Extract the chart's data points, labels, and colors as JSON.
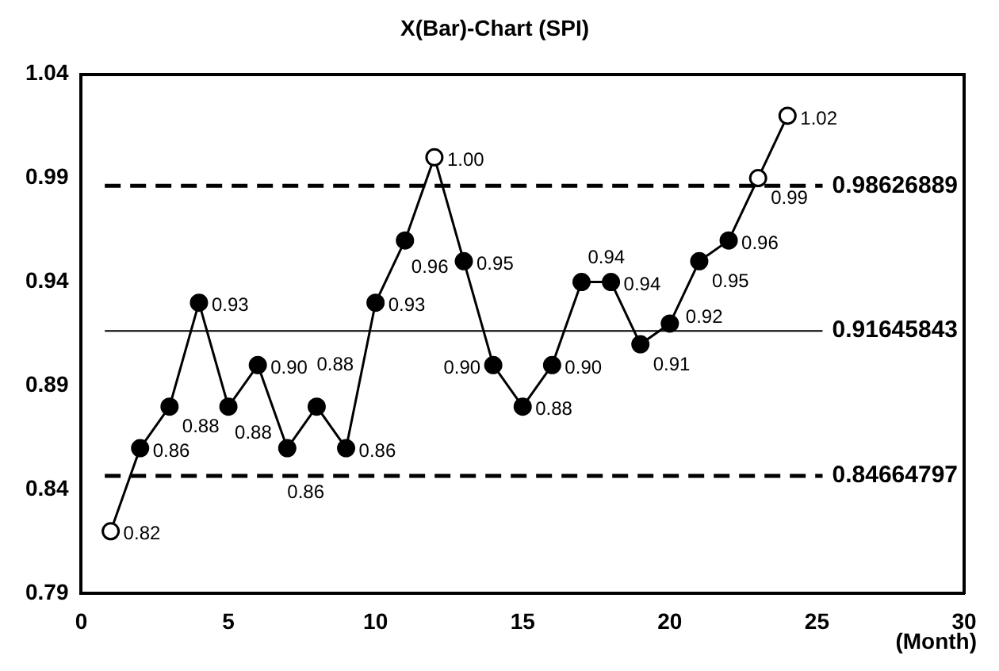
{
  "chart_data": {
    "type": "line",
    "title": "X(Bar)-Chart (SPI)",
    "xlabel": "(Month)",
    "x": [
      1,
      2,
      3,
      4,
      5,
      6,
      7,
      8,
      9,
      10,
      11,
      12,
      13,
      14,
      15,
      16,
      17,
      18,
      19,
      20,
      21,
      22,
      23,
      24
    ],
    "series": [
      {
        "color": "#000000",
        "values": [
          0.82,
          0.86,
          0.88,
          0.93,
          0.88,
          0.9,
          0.86,
          0.88,
          0.86,
          0.93,
          0.96,
          1.0,
          0.95,
          0.9,
          0.88,
          0.9,
          0.94,
          0.94,
          0.91,
          0.92,
          0.95,
          0.96,
          0.99,
          1.02
        ],
        "value_labels": [
          "0.82",
          "0.86",
          "0.88",
          "0.93",
          "0.88",
          "0.90",
          "0.86",
          "0.88",
          "0.86",
          "0.93",
          "0.96",
          "1.00",
          "0.95",
          "0.90",
          "0.88",
          "0.90",
          "0.94",
          "0.94",
          "0.91",
          "0.92",
          "0.95",
          "0.96",
          "0.99",
          "1.02"
        ]
      }
    ],
    "xlim": [
      0,
      30
    ],
    "xticks": [
      0,
      5,
      10,
      15,
      20,
      25,
      30
    ],
    "ylim": [
      0.79,
      1.04
    ],
    "yticks": [
      0.79,
      0.84,
      0.89,
      0.94,
      0.99,
      1.04
    ],
    "ref_lines": [
      {
        "axis": "y",
        "value": 0.98626889,
        "label": "0.98626889",
        "line_style": "dashed",
        "color": "#000000"
      },
      {
        "axis": "y",
        "value": 0.91645843,
        "label": "0.91645843",
        "line_style": "solid",
        "color": "#000000"
      },
      {
        "axis": "y",
        "value": 0.84664797,
        "label": "0.84664797",
        "line_style": "dashed",
        "color": "#000000"
      }
    ],
    "marker": "circle",
    "line_style": "solid",
    "grid": false,
    "legend": false
  }
}
